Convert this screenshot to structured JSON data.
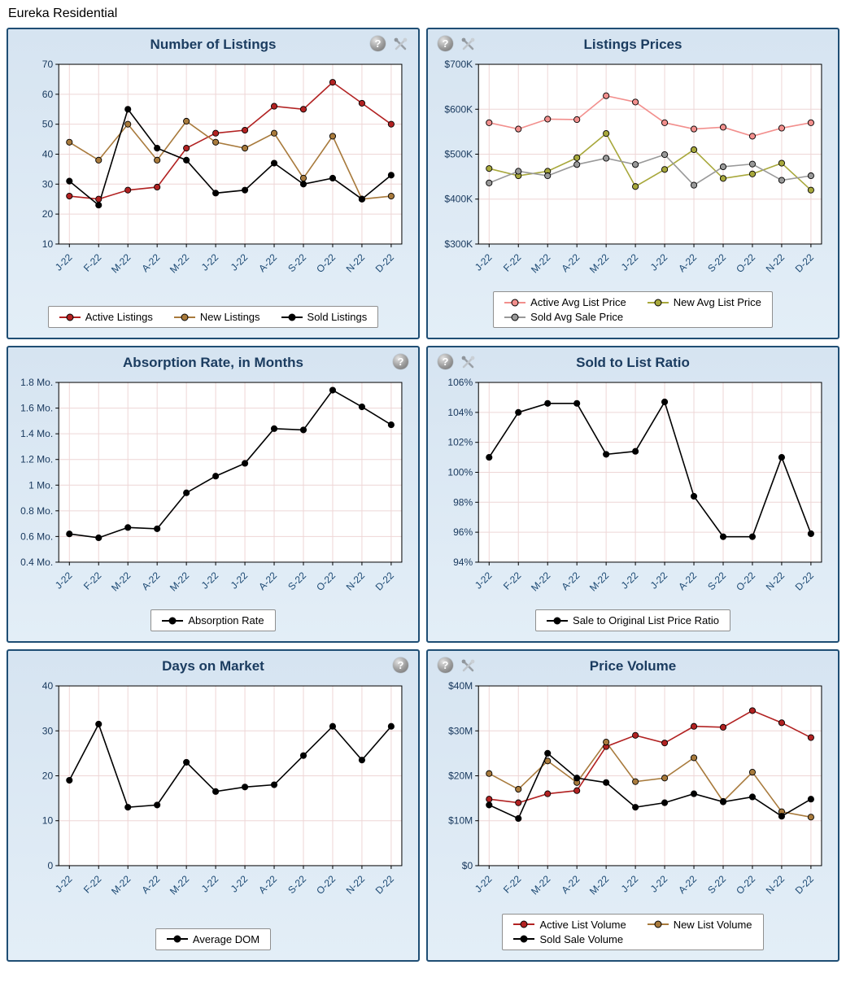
{
  "page_title": "Eureka Residential",
  "icons": {
    "help_glyph": "?",
    "tools_glyph": "crossed-tools"
  },
  "colors": {
    "panel_border": "#1f4e74",
    "panel_background": "#d9e6f2",
    "title_text": "#1b3c60",
    "grid_line": "#eed6d6",
    "axis_text": "#17375c",
    "active_red": "#b22222",
    "new_brown": "#a87a3c",
    "sold_black": "#000000",
    "active_avg_pink": "#f28f8d",
    "new_avg_olive": "#a8a83c",
    "sold_avg_gray": "#999999"
  },
  "panels": [
    {
      "title": "Number of Listings",
      "chart_data": {
        "type": "line",
        "categories": [
          "J-22",
          "F-22",
          "M-22",
          "A-22",
          "M-22",
          "J-22",
          "J-22",
          "A-22",
          "S-22",
          "O-22",
          "N-22",
          "D-22"
        ],
        "series": [
          {
            "name": "Active Listings",
            "color": "#b22222",
            "values": [
              26,
              25,
              28,
              29,
              42,
              47,
              48,
              56,
              55,
              64,
              57,
              50
            ]
          },
          {
            "name": "New Listings",
            "color": "#a87a3c",
            "values": [
              44,
              38,
              50,
              38,
              51,
              44,
              42,
              47,
              32,
              46,
              25,
              26
            ]
          },
          {
            "name": "Sold Listings",
            "color": "#000000",
            "values": [
              31,
              23,
              55,
              42,
              38,
              27,
              28,
              37,
              30,
              32,
              25,
              33
            ]
          }
        ],
        "ylim": [
          10,
          70
        ],
        "ytick_values": [
          10,
          20,
          30,
          40,
          50,
          60,
          70
        ],
        "ytick_labels": [
          "10",
          "20",
          "30",
          "40",
          "50",
          "60",
          "70"
        ],
        "grid": true,
        "legend_position": "bottom",
        "legend_rows": [
          [
            0,
            1,
            2
          ]
        ]
      }
    },
    {
      "title": "Listings Prices",
      "chart_data": {
        "type": "line",
        "categories": [
          "J-22",
          "F-22",
          "M-22",
          "A-22",
          "M-22",
          "J-22",
          "J-22",
          "A-22",
          "S-22",
          "O-22",
          "N-22",
          "D-22"
        ],
        "series": [
          {
            "name": "Active Avg List Price",
            "color": "#f28f8d",
            "values": [
              570,
              556,
              578,
              577,
              630,
              616,
              570,
              556,
              560,
              540,
              558,
              570
            ]
          },
          {
            "name": "New Avg List Price",
            "color": "#a8a83c",
            "values": [
              468,
              452,
              462,
              492,
              546,
              428,
              466,
              510,
              446,
              456,
              480,
              420
            ]
          },
          {
            "name": "Sold Avg Sale Price",
            "color": "#999999",
            "values": [
              436,
              462,
              452,
              477,
              491,
              477,
              499,
              431,
              472,
              478,
              442,
              452
            ]
          }
        ],
        "ylim": [
          300,
          700
        ],
        "ytick_values": [
          300,
          400,
          500,
          600,
          700
        ],
        "ytick_labels": [
          "$300K",
          "$400K",
          "$500K",
          "$600K",
          "$700K"
        ],
        "grid": true,
        "legend_position": "bottom",
        "legend_rows": [
          [
            0,
            1
          ],
          [
            2
          ]
        ]
      }
    },
    {
      "title": "Absorption Rate, in Months",
      "chart_data": {
        "type": "line",
        "categories": [
          "J-22",
          "F-22",
          "M-22",
          "A-22",
          "M-22",
          "J-22",
          "J-22",
          "A-22",
          "S-22",
          "O-22",
          "N-22",
          "D-22"
        ],
        "series": [
          {
            "name": "Absorption Rate",
            "color": "#000000",
            "values": [
              0.62,
              0.59,
              0.67,
              0.66,
              0.94,
              1.07,
              1.17,
              1.44,
              1.43,
              1.74,
              1.61,
              1.47
            ]
          }
        ],
        "ylim": [
          0.4,
          1.8
        ],
        "ytick_values": [
          0.4,
          0.6,
          0.8,
          1,
          1.2,
          1.4,
          1.6,
          1.8
        ],
        "ytick_labels": [
          "0.4 Mo.",
          "0.6 Mo.",
          "0.8 Mo.",
          "1 Mo.",
          "1.2 Mo.",
          "1.4 Mo.",
          "1.6 Mo.",
          "1.8 Mo."
        ],
        "grid": true,
        "legend_position": "bottom",
        "legend_rows": [
          [
            0
          ]
        ]
      }
    },
    {
      "title": "Sold to List Ratio",
      "chart_data": {
        "type": "line",
        "categories": [
          "J-22",
          "F-22",
          "M-22",
          "A-22",
          "M-22",
          "J-22",
          "J-22",
          "A-22",
          "S-22",
          "O-22",
          "N-22",
          "D-22"
        ],
        "series": [
          {
            "name": "Sale to Original List Price Ratio",
            "color": "#000000",
            "values": [
              101,
              104,
              104.6,
              104.6,
              101.2,
              101.4,
              104.7,
              98.4,
              95.7,
              95.7,
              101,
              95.9
            ]
          }
        ],
        "ylim": [
          94,
          106
        ],
        "ytick_values": [
          94,
          96,
          98,
          100,
          102,
          104,
          106
        ],
        "ytick_labels": [
          "94%",
          "96%",
          "98%",
          "100%",
          "102%",
          "104%",
          "106%"
        ],
        "grid": true,
        "legend_position": "bottom",
        "legend_rows": [
          [
            0
          ]
        ]
      }
    },
    {
      "title": "Days on Market",
      "chart_data": {
        "type": "line",
        "categories": [
          "J-22",
          "F-22",
          "M-22",
          "A-22",
          "M-22",
          "J-22",
          "J-22",
          "A-22",
          "S-22",
          "O-22",
          "N-22",
          "D-22"
        ],
        "series": [
          {
            "name": "Average DOM",
            "color": "#000000",
            "values": [
              19,
              31.5,
              13,
              13.5,
              23,
              16.5,
              17.5,
              18,
              24.5,
              31,
              23.5,
              31
            ]
          }
        ],
        "ylim": [
          0,
          40
        ],
        "ytick_values": [
          0,
          10,
          20,
          30,
          40
        ],
        "ytick_labels": [
          "0",
          "10",
          "20",
          "30",
          "40"
        ],
        "grid": true,
        "legend_position": "bottom",
        "legend_rows": [
          [
            0
          ]
        ]
      }
    },
    {
      "title": "Price Volume",
      "chart_data": {
        "type": "line",
        "categories": [
          "J-22",
          "F-22",
          "M-22",
          "A-22",
          "M-22",
          "J-22",
          "J-22",
          "A-22",
          "S-22",
          "O-22",
          "N-22",
          "D-22"
        ],
        "series": [
          {
            "name": "Active List Volume",
            "color": "#b22222",
            "values": [
              14.8,
              14,
              16,
              16.7,
              26.5,
              29,
              27.3,
              31,
              30.8,
              34.5,
              31.8,
              28.5
            ]
          },
          {
            "name": "New List Volume",
            "color": "#a87a3c",
            "values": [
              20.5,
              17,
              23.3,
              18.5,
              27.5,
              18.7,
              19.5,
              24,
              14.3,
              20.8,
              12,
              10.8
            ]
          },
          {
            "name": "Sold Sale Volume",
            "color": "#000000",
            "values": [
              13.5,
              10.5,
              25,
              19.5,
              18.5,
              13,
              14,
              16,
              14.2,
              15.3,
              11,
              14.8
            ]
          }
        ],
        "ylim": [
          0,
          40
        ],
        "ytick_values": [
          0,
          10,
          20,
          30,
          40
        ],
        "ytick_labels": [
          "$0",
          "$10M",
          "$20M",
          "$30M",
          "$40M"
        ],
        "grid": true,
        "legend_position": "bottom",
        "legend_rows": [
          [
            0,
            1
          ],
          [
            2
          ]
        ]
      }
    }
  ]
}
